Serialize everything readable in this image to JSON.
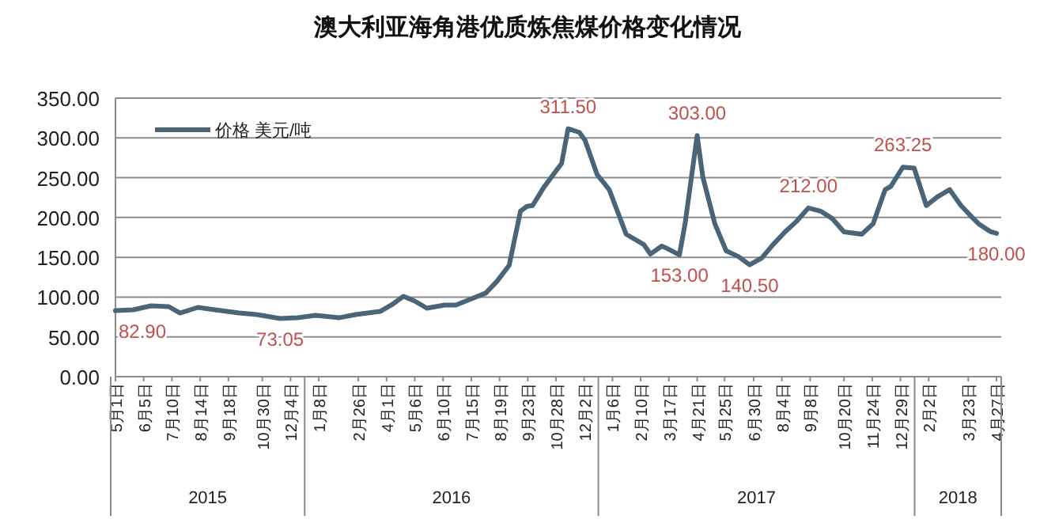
{
  "chart_data": {
    "type": "line",
    "title": "澳大利亚海角港优质炼焦煤价格变化情况",
    "series": [
      {
        "name": "价格 美元/吨",
        "color": "#4a6478",
        "x": [
          "2015-05-01",
          "2015-05-23",
          "2015-06-14",
          "2015-07-06",
          "2015-07-20",
          "2015-08-11",
          "2015-08-25",
          "2015-10-01",
          "2015-10-23",
          "2015-11-21",
          "2015-12-13",
          "2016-01-04",
          "2016-02-02",
          "2016-02-23",
          "2016-03-24",
          "2016-04-07",
          "2016-04-22",
          "2016-05-06",
          "2016-05-21",
          "2016-06-12",
          "2016-06-26",
          "2016-07-18",
          "2016-08-02",
          "2016-08-16",
          "2016-08-31",
          "2016-09-14",
          "2016-09-22",
          "2016-09-29",
          "2016-10-13",
          "2016-11-04",
          "2016-11-12",
          "2016-11-26",
          "2016-12-03",
          "2016-12-18",
          "2017-01-02",
          "2017-01-23",
          "2017-02-14",
          "2017-02-22",
          "2017-03-08",
          "2017-03-15",
          "2017-03-30",
          "2017-04-06",
          "2017-04-21",
          "2017-04-28",
          "2017-05-13",
          "2017-05-27",
          "2017-06-11",
          "2017-06-25",
          "2017-07-10",
          "2017-07-24",
          "2017-08-08",
          "2017-08-22",
          "2017-09-06",
          "2017-09-21",
          "2017-10-05",
          "2017-10-20",
          "2017-11-11",
          "2017-11-25",
          "2017-12-10",
          "2017-12-17",
          "2018-01-01",
          "2018-01-15",
          "2018-01-30",
          "2018-02-13",
          "2018-02-28",
          "2018-03-14",
          "2018-03-29",
          "2018-04-05",
          "2018-04-20",
          "2018-04-27"
        ],
        "values": [
          82.9,
          84,
          89,
          88,
          80,
          87,
          85,
          80,
          78,
          73.05,
          74,
          77,
          74,
          78,
          82,
          90,
          101,
          95,
          86,
          90,
          90,
          99,
          105,
          120,
          140,
          208,
          214,
          215,
          238,
          268,
          311.5,
          307,
          297,
          254,
          235,
          179,
          166,
          154,
          164,
          161,
          153,
          192,
          303,
          251,
          192,
          158,
          151,
          140.5,
          149,
          166,
          182,
          195,
          212,
          208,
          199,
          182,
          179,
          192,
          235,
          239,
          263.25,
          262,
          215,
          226,
          235,
          215,
          199,
          192,
          182,
          180
        ]
      }
    ],
    "xlim": [
      "2015-05-01",
      "2018-04-27"
    ],
    "xticks": [
      {
        "value": "2015-05-01",
        "label": "5月1日"
      },
      {
        "value": "2015-06-05",
        "label": "6月5日"
      },
      {
        "value": "2015-07-10",
        "label": "7月10日"
      },
      {
        "value": "2015-08-14",
        "label": "8月14日"
      },
      {
        "value": "2015-09-18",
        "label": "9月18日"
      },
      {
        "value": "2015-10-30",
        "label": "10月30日"
      },
      {
        "value": "2015-12-04",
        "label": "12月4日"
      },
      {
        "value": "2016-01-08",
        "label": "1月8日"
      },
      {
        "value": "2016-02-26",
        "label": "2月26日"
      },
      {
        "value": "2016-04-01",
        "label": "4月1日"
      },
      {
        "value": "2016-05-06",
        "label": "5月6日"
      },
      {
        "value": "2016-06-10",
        "label": "6月10日"
      },
      {
        "value": "2016-07-15",
        "label": "7月15日"
      },
      {
        "value": "2016-08-19",
        "label": "8月19日"
      },
      {
        "value": "2016-09-23",
        "label": "9月23日"
      },
      {
        "value": "2016-10-28",
        "label": "10月28日"
      },
      {
        "value": "2016-12-02",
        "label": "12月2日"
      },
      {
        "value": "2017-01-06",
        "label": "1月6日"
      },
      {
        "value": "2017-02-10",
        "label": "2月10日"
      },
      {
        "value": "2017-03-17",
        "label": "3月17日"
      },
      {
        "value": "2017-04-21",
        "label": "4月21日"
      },
      {
        "value": "2017-05-25",
        "label": "5月25日"
      },
      {
        "value": "2017-06-30",
        "label": "6月30日"
      },
      {
        "value": "2017-08-04",
        "label": "8月4日"
      },
      {
        "value": "2017-09-08",
        "label": "9月8日"
      },
      {
        "value": "2017-10-20",
        "label": "10月20日"
      },
      {
        "value": "2017-11-24",
        "label": "11月24日"
      },
      {
        "value": "2017-12-29",
        "label": "12月29日"
      },
      {
        "value": "2018-02-02",
        "label": "2月2日"
      },
      {
        "value": "2018-03-23",
        "label": "3月23日"
      },
      {
        "value": "2018-04-27",
        "label": "4月27日"
      }
    ],
    "ylim": [
      0,
      350
    ],
    "yticks": [
      {
        "value": 0,
        "label": "0.00"
      },
      {
        "value": 50,
        "label": "50.00"
      },
      {
        "value": 100,
        "label": "100.00"
      },
      {
        "value": 150,
        "label": "150.00"
      },
      {
        "value": 200,
        "label": "200.00"
      },
      {
        "value": 250,
        "label": "250.00"
      },
      {
        "value": 300,
        "label": "300.00"
      },
      {
        "value": 350,
        "label": "350.00"
      }
    ],
    "grid": "y",
    "legend": "top left",
    "annotations": [
      {
        "text": "82.90",
        "x": "2015-05-01",
        "y": 82.9
      },
      {
        "text": "73.05",
        "x": "2015-11-21",
        "y": 73.05
      },
      {
        "text": "311.50",
        "x": "2016-11-12",
        "y": 311.5
      },
      {
        "text": "303.00",
        "x": "2017-04-21",
        "y": 303
      },
      {
        "text": "153.00",
        "x": "2017-03-30",
        "y": 153
      },
      {
        "text": "140.50",
        "x": "2017-06-25",
        "y": 140.5
      },
      {
        "text": "212.00",
        "x": "2017-09-06",
        "y": 212
      },
      {
        "text": "263.25",
        "x": "2018-01-01",
        "y": 263.25
      },
      {
        "text": "180.00",
        "x": "2018-04-27",
        "y": 180
      },
      "2015",
      "2016",
      "2017",
      "2018"
    ]
  }
}
